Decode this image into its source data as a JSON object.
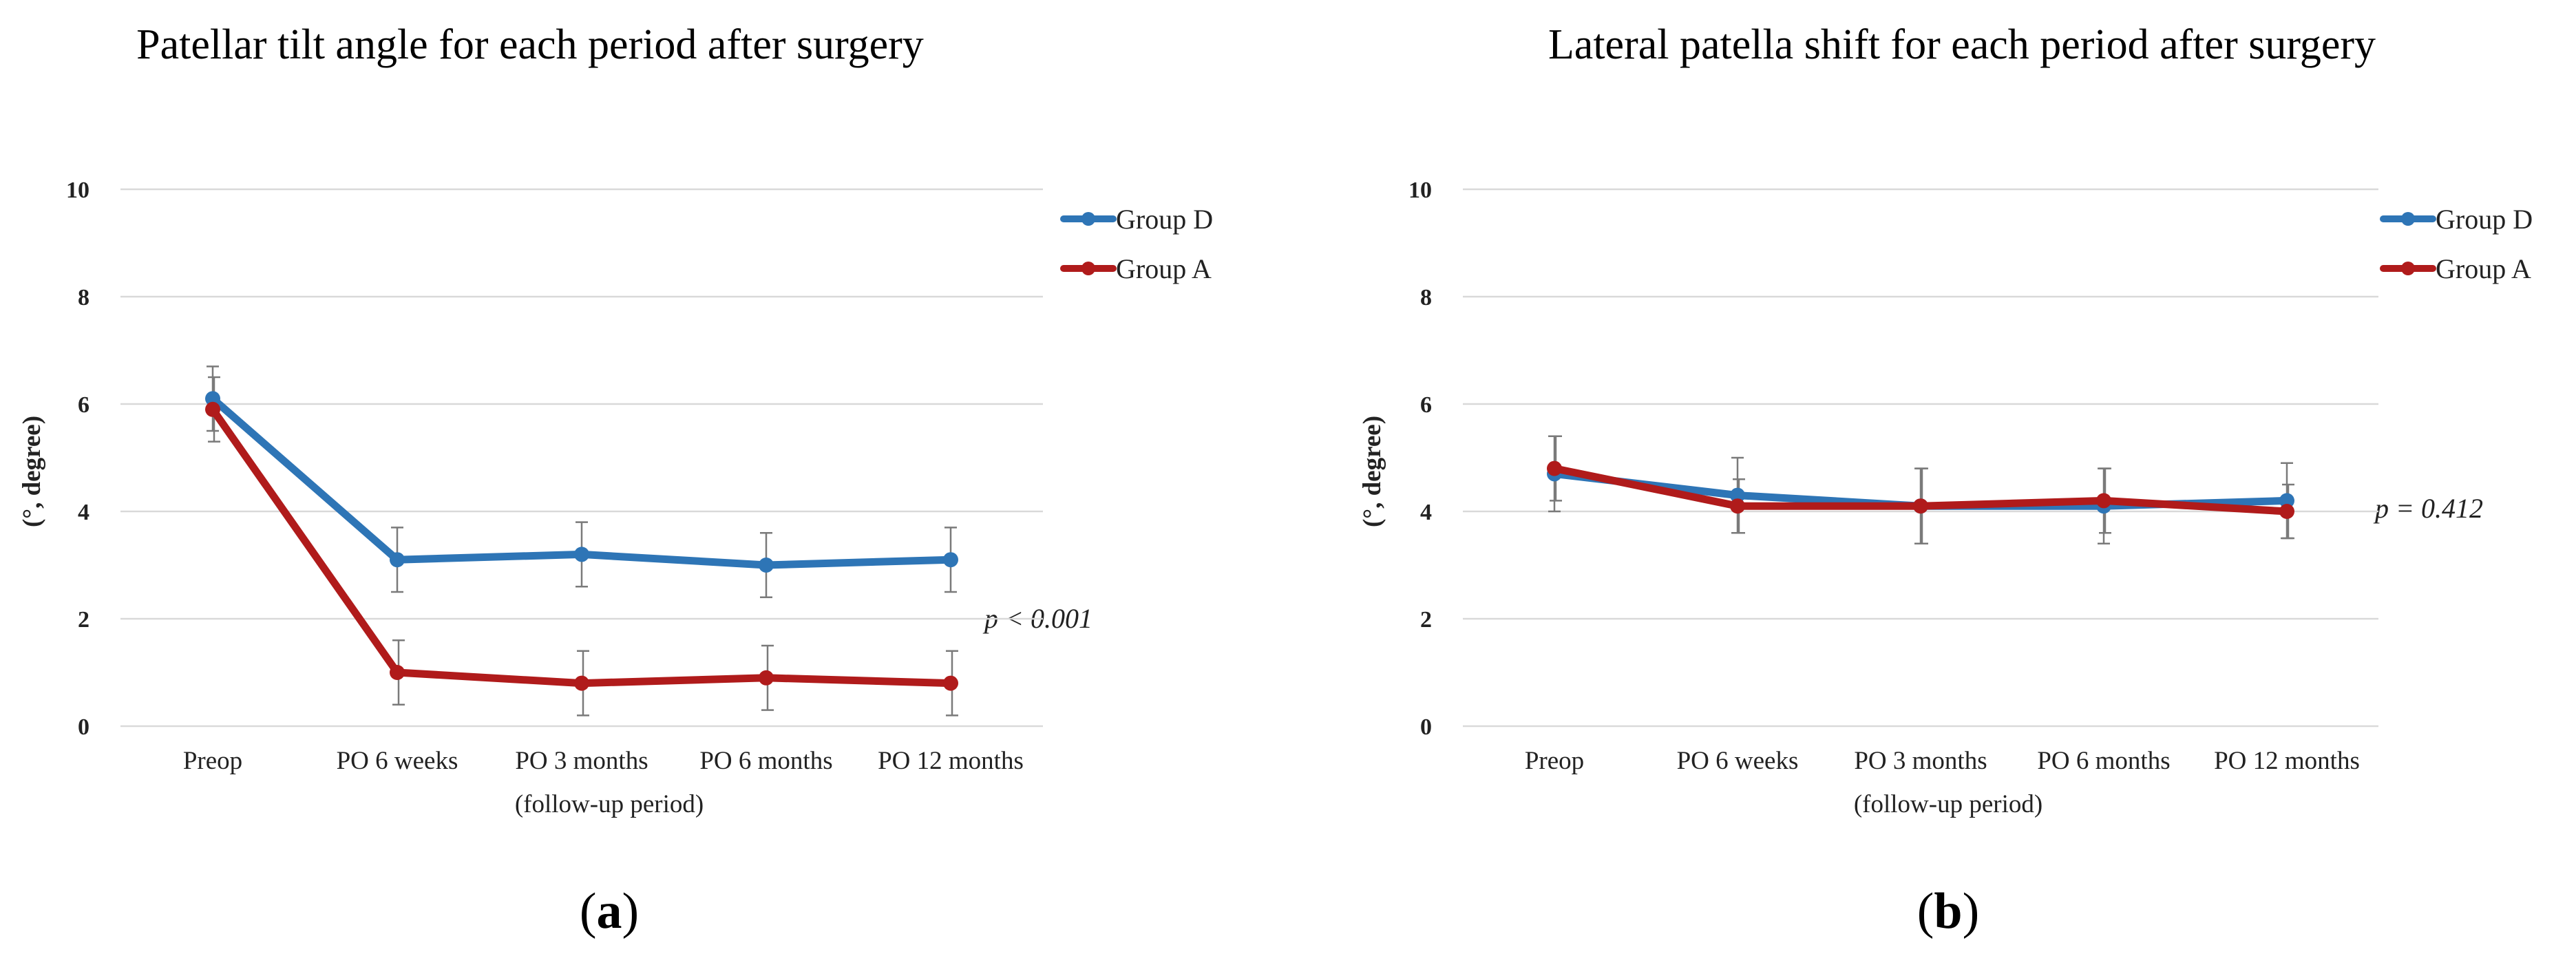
{
  "colors": {
    "group_d": "#2E75B6",
    "group_a": "#B01B1B"
  },
  "chart_data": [
    {
      "type": "line",
      "title": "Patellar tilt angle for each period after surgery",
      "xlabel": "(follow-up period)",
      "ylabel": "(°, degree)",
      "ylim": [
        0,
        10
      ],
      "yticks": [
        0,
        2,
        4,
        6,
        8,
        10
      ],
      "categories": [
        "Preop",
        "PO 6 weeks",
        "PO 3 months",
        "PO 6 months",
        "PO 12 months"
      ],
      "series": [
        {
          "name": "Group D",
          "color": "#2E75B6",
          "values": [
            6.1,
            3.1,
            3.2,
            3.0,
            3.1
          ],
          "errors": [
            0.6,
            0.6,
            0.6,
            0.6,
            0.6
          ]
        },
        {
          "name": "Group A",
          "color": "#B01B1B",
          "values": [
            5.9,
            1.0,
            0.8,
            0.9,
            0.8
          ],
          "errors": [
            0.6,
            0.6,
            0.6,
            0.6,
            0.6
          ]
        }
      ],
      "annotation": "p < 0.001",
      "caption_letter": "a",
      "legend": "right"
    },
    {
      "type": "line",
      "title": "Lateral patella shift for each period after surgery",
      "xlabel": "(follow-up period)",
      "ylabel": "(°, degree)",
      "ylim": [
        0,
        10
      ],
      "yticks": [
        0,
        2,
        4,
        6,
        8,
        10
      ],
      "categories": [
        "Preop",
        "PO 6 weeks",
        "PO 3 months",
        "PO 6 months",
        "PO 12 months"
      ],
      "series": [
        {
          "name": "Group D",
          "color": "#2E75B6",
          "values": [
            4.7,
            4.3,
            4.1,
            4.1,
            4.2
          ],
          "errors": [
            0.7,
            0.7,
            0.7,
            0.7,
            0.7
          ]
        },
        {
          "name": "Group A",
          "color": "#B01B1B",
          "values": [
            4.8,
            4.1,
            4.1,
            4.2,
            4.0
          ],
          "errors": [
            0.6,
            0.5,
            0.7,
            0.6,
            0.5
          ]
        }
      ],
      "annotation": "p = 0.412",
      "caption_letter": "b",
      "legend": "right"
    }
  ]
}
